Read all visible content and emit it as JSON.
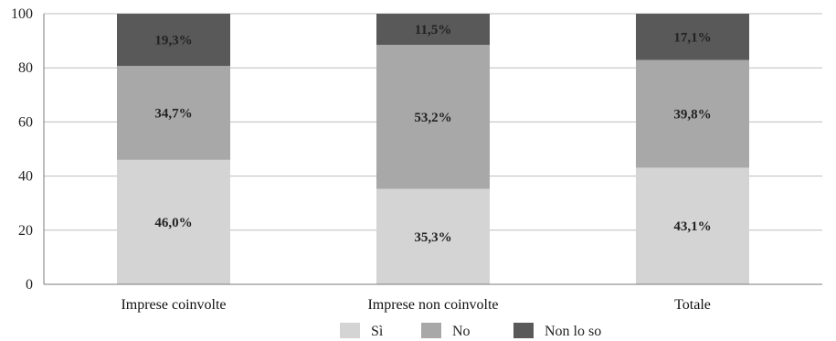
{
  "chart_data": {
    "type": "bar",
    "stacked": true,
    "categories": [
      "Imprese coinvolte",
      "Imprese non coinvolte",
      "Totale"
    ],
    "series": [
      {
        "name": "Sì",
        "values": [
          46.0,
          35.3,
          43.1
        ],
        "labels": [
          "46,0%",
          "35,3%",
          "43,1%"
        ],
        "color": "#d4d4d4"
      },
      {
        "name": "No",
        "values": [
          34.7,
          53.2,
          39.8
        ],
        "labels": [
          "34,7%",
          "53,2%",
          "39,8%"
        ],
        "color": "#a8a8a8"
      },
      {
        "name": "Non lo so",
        "values": [
          19.3,
          11.5,
          17.1
        ],
        "labels": [
          "19,3%",
          "11,5%",
          "17,1%"
        ],
        "color": "#595959"
      }
    ],
    "ylim": [
      0,
      100
    ],
    "yticks": [
      "0",
      "20",
      "40",
      "60",
      "80",
      "100"
    ],
    "grid": true,
    "legend_position": "bottom"
  }
}
